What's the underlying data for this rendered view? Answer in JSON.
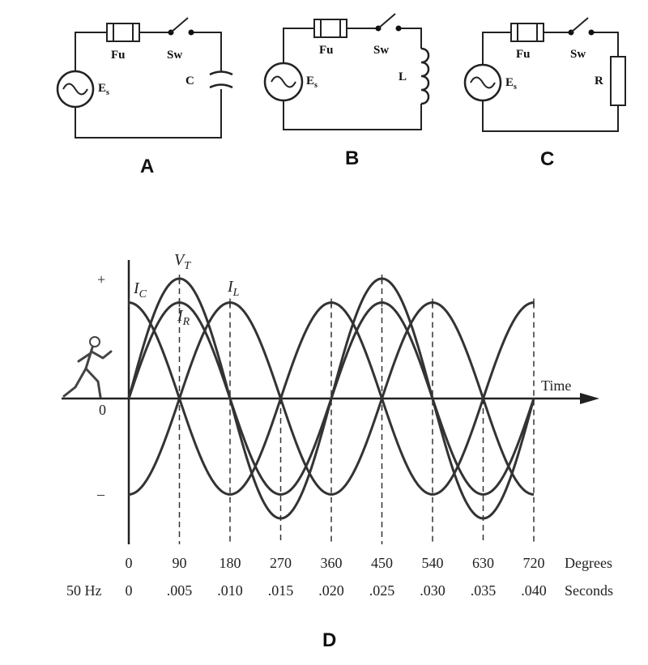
{
  "panels": [
    {
      "letter": "A",
      "fuse": "Fu",
      "switch": "Sw",
      "source": "E",
      "source_sub": "s",
      "component": "C",
      "type": "capacitor"
    },
    {
      "letter": "B",
      "fuse": "Fu",
      "switch": "Sw",
      "source": "E",
      "source_sub": "s",
      "component": "L",
      "type": "inductor"
    },
    {
      "letter": "C",
      "fuse": "Fu",
      "switch": "Sw",
      "source": "E",
      "source_sub": "s",
      "component": "R",
      "type": "resistor"
    }
  ],
  "waveform": {
    "letter": "D",
    "plus_label": "+",
    "minus_label": "–",
    "zero_label": "0",
    "time_label": "Time",
    "degrees_label": "Degrees",
    "frequency_label": "50 Hz",
    "seconds_label": "Seconds",
    "degree_ticks": [
      "0",
      "90",
      "180",
      "270",
      "360",
      "450",
      "540",
      "630",
      "720"
    ],
    "second_ticks": [
      "0",
      ".005",
      ".010",
      ".015",
      ".020",
      ".025",
      ".030",
      ".035",
      ".040"
    ],
    "curves": [
      {
        "name": "I",
        "sub": "C",
        "phase_deg": 90,
        "amplitude": 0.8
      },
      {
        "name": "V",
        "sub": "T",
        "phase_deg": 0,
        "amplitude": 1.0
      },
      {
        "name": "I",
        "sub": "R",
        "phase_deg": 0,
        "amplitude": 0.8
      },
      {
        "name": "I",
        "sub": "L",
        "phase_deg": -90,
        "amplitude": 0.8
      }
    ]
  }
}
